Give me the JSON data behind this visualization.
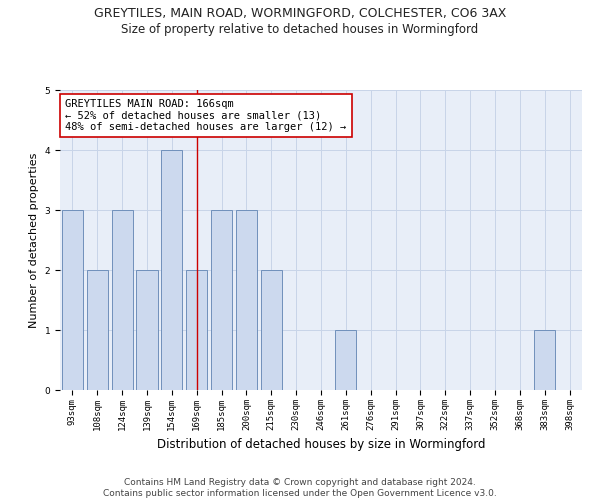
{
  "title": "GREYTILES, MAIN ROAD, WORMINGFORD, COLCHESTER, CO6 3AX",
  "subtitle": "Size of property relative to detached houses in Wormingford",
  "xlabel": "Distribution of detached houses by size in Wormingford",
  "ylabel": "Number of detached properties",
  "categories": [
    "93sqm",
    "108sqm",
    "124sqm",
    "139sqm",
    "154sqm",
    "169sqm",
    "185sqm",
    "200sqm",
    "215sqm",
    "230sqm",
    "246sqm",
    "261sqm",
    "276sqm",
    "291sqm",
    "307sqm",
    "322sqm",
    "337sqm",
    "352sqm",
    "368sqm",
    "383sqm",
    "398sqm"
  ],
  "values": [
    3,
    2,
    3,
    2,
    4,
    2,
    3,
    3,
    2,
    0,
    0,
    1,
    0,
    0,
    0,
    0,
    0,
    0,
    0,
    1,
    0
  ],
  "bar_color": "#ccd9ee",
  "bar_edge_color": "#7090bb",
  "vline_index": 5,
  "vline_color": "#cc0000",
  "annotation_text": "GREYTILES MAIN ROAD: 166sqm\n← 52% of detached houses are smaller (13)\n48% of semi-detached houses are larger (12) →",
  "annotation_box_color": "white",
  "annotation_box_edge_color": "#cc0000",
  "ylim": [
    0,
    5
  ],
  "yticks": [
    0,
    1,
    2,
    3,
    4,
    5
  ],
  "grid_color": "#c8d4e8",
  "background_color": "#e8eef8",
  "footnote": "Contains HM Land Registry data © Crown copyright and database right 2024.\nContains public sector information licensed under the Open Government Licence v3.0.",
  "title_fontsize": 9,
  "subtitle_fontsize": 8.5,
  "xlabel_fontsize": 8.5,
  "ylabel_fontsize": 8,
  "tick_fontsize": 6.5,
  "annotation_fontsize": 7.5,
  "footnote_fontsize": 6.5
}
